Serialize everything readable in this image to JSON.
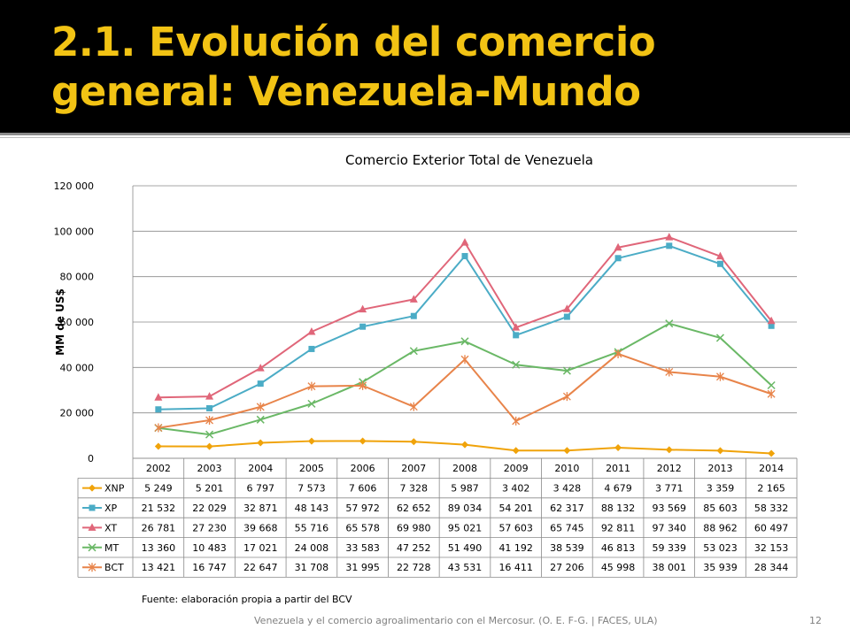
{
  "slide": {
    "title": "2.1. Evolución del comercio general: Venezuela-Mundo",
    "source_note": "Fuente: elaboración propia a partir del BCV",
    "footer": "Venezuela y el comercio agroalimentario con el Mercosur. (O. E. F-G. | FACES, ULA)",
    "page_number": "12"
  },
  "colors": {
    "title_bar": "#000000",
    "title_text": "#f2c314"
  },
  "chart_data": {
    "type": "line",
    "title": "Comercio Exterior Total de Venezuela",
    "ylabel": "MM de US$",
    "xlabel": "",
    "ylim": [
      0,
      120000
    ],
    "yticks": [
      0,
      20000,
      40000,
      60000,
      80000,
      100000,
      120000
    ],
    "ytick_labels": [
      "0",
      "20 000",
      "40 000",
      "60 000",
      "80 000",
      "100 000",
      "120 000"
    ],
    "grid": true,
    "legend": "data-table",
    "categories": [
      "2002",
      "2003",
      "2004",
      "2005",
      "2006",
      "2007",
      "2008",
      "2009",
      "2010",
      "2011",
      "2012",
      "2013",
      "2014"
    ],
    "series": [
      {
        "name": "XNP",
        "color": "#f0a30a",
        "marker": "diamond",
        "values": [
          5249,
          5201,
          6797,
          7573,
          7606,
          7328,
          5987,
          3402,
          3428,
          4679,
          3771,
          3359,
          2165
        ],
        "labels": [
          "5 249",
          "5 201",
          "6 797",
          "7 573",
          "7 606",
          "7 328",
          "5 987",
          "3 402",
          "3 428",
          "4 679",
          "3 771",
          "3 359",
          "2 165"
        ]
      },
      {
        "name": "XP",
        "color": "#4bacc6",
        "marker": "square",
        "values": [
          21532,
          22029,
          32871,
          48143,
          57972,
          62652,
          89034,
          54201,
          62317,
          88132,
          93569,
          85603,
          58332
        ],
        "labels": [
          "21 532",
          "22 029",
          "32 871",
          "48 143",
          "57 972",
          "62 652",
          "89 034",
          "54 201",
          "62 317",
          "88 132",
          "93 569",
          "85 603",
          "58 332"
        ]
      },
      {
        "name": "XT",
        "color": "#e06679",
        "marker": "triangle",
        "values": [
          26781,
          27230,
          39668,
          55716,
          65578,
          69980,
          95021,
          57603,
          65745,
          92811,
          97340,
          88962,
          60497
        ],
        "labels": [
          "26 781",
          "27 230",
          "39 668",
          "55 716",
          "65 578",
          "69 980",
          "95 021",
          "57 603",
          "65 745",
          "92 811",
          "97 340",
          "88 962",
          "60 497"
        ]
      },
      {
        "name": "MT",
        "color": "#6ab866",
        "marker": "x",
        "values": [
          13360,
          10483,
          17021,
          24008,
          33583,
          47252,
          51490,
          41192,
          38539,
          46813,
          59339,
          53023,
          32153
        ],
        "labels": [
          "13 360",
          "10 483",
          "17 021",
          "24 008",
          "33 583",
          "47 252",
          "51 490",
          "41 192",
          "38 539",
          "46 813",
          "59 339",
          "53 023",
          "32 153"
        ]
      },
      {
        "name": "BCT",
        "color": "#e8844a",
        "marker": "star",
        "values": [
          13421,
          16747,
          22647,
          31708,
          31995,
          22728,
          43531,
          16411,
          27206,
          45998,
          38001,
          35939,
          28344
        ],
        "labels": [
          "13 421",
          "16 747",
          "22 647",
          "31 708",
          "31 995",
          "22 728",
          "43 531",
          "16 411",
          "27 206",
          "45 998",
          "38 001",
          "35 939",
          "28 344"
        ]
      }
    ]
  }
}
